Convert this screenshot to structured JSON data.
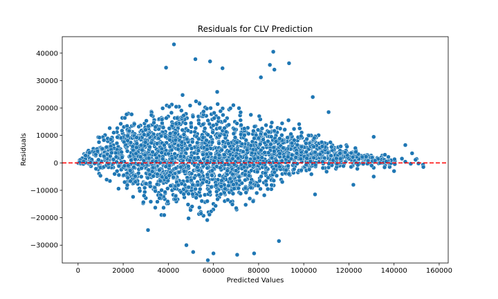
{
  "chart_data": {
    "type": "scatter",
    "title": "Residuals for CLV Prediction",
    "xlabel": "Predicted Values",
    "ylabel": "Residuals",
    "xlim": [
      -7000,
      164000
    ],
    "ylim": [
      -36500,
      46000
    ],
    "xticks": [
      0,
      20000,
      40000,
      60000,
      80000,
      100000,
      120000,
      140000,
      160000
    ],
    "xtick_labels": [
      "0",
      "20000",
      "40000",
      "60000",
      "80000",
      "100000",
      "120000",
      "140000",
      "160000"
    ],
    "yticks": [
      -30000,
      -20000,
      -10000,
      0,
      10000,
      20000,
      30000,
      40000
    ],
    "ytick_labels": [
      "−30000",
      "−20000",
      "−10000",
      "0",
      "10000",
      "20000",
      "30000",
      "40000"
    ],
    "grid": false,
    "reference_line": {
      "y": 0,
      "color": "#ff0000",
      "style": "dashed"
    },
    "marker_color": "#1f77b4",
    "marker_edge_color": "#ffffff",
    "envelope": {
      "x": [
        0,
        10000,
        20000,
        30000,
        40000,
        50000,
        60000,
        70000,
        80000,
        90000,
        100000,
        110000,
        120000,
        130000,
        140000,
        150000,
        153000
      ],
      "upper": [
        500,
        14000,
        21000,
        25000,
        27000,
        28000,
        27000,
        25000,
        22000,
        18000,
        15000,
        11000,
        7000,
        5000,
        3000,
        2000,
        0
      ],
      "lower": [
        -500,
        -8000,
        -14000,
        -18000,
        -22000,
        -24000,
        -24000,
        -22000,
        -17000,
        -11000,
        -7000,
        -5000,
        -3000,
        -2500,
        -2000,
        -1000,
        -1500
      ]
    },
    "outliers": [
      {
        "x": 42500,
        "y": 43200
      },
      {
        "x": 86500,
        "y": 40500
      },
      {
        "x": 52000,
        "y": 37800
      },
      {
        "x": 58500,
        "y": 37000
      },
      {
        "x": 93500,
        "y": 36300
      },
      {
        "x": 85000,
        "y": 35700
      },
      {
        "x": 39000,
        "y": 34700
      },
      {
        "x": 87000,
        "y": 34000
      },
      {
        "x": 64000,
        "y": 34500
      },
      {
        "x": 81000,
        "y": 31200
      },
      {
        "x": 104000,
        "y": 24000
      },
      {
        "x": 111000,
        "y": 18500
      },
      {
        "x": 131000,
        "y": 9500
      },
      {
        "x": 145000,
        "y": 6500
      },
      {
        "x": 148000,
        "y": 3500
      },
      {
        "x": 153000,
        "y": -1500
      },
      {
        "x": 57500,
        "y": -35500
      },
      {
        "x": 51000,
        "y": -32500
      },
      {
        "x": 60000,
        "y": -33000
      },
      {
        "x": 70500,
        "y": -33500
      },
      {
        "x": 78000,
        "y": -33000
      },
      {
        "x": 48000,
        "y": -30000
      },
      {
        "x": 89000,
        "y": -28500
      },
      {
        "x": 31000,
        "y": -24500
      },
      {
        "x": 105000,
        "y": -11500
      },
      {
        "x": 122000,
        "y": -8000
      },
      {
        "x": 131000,
        "y": -5000
      },
      {
        "x": 140000,
        "y": -3000
      }
    ]
  }
}
